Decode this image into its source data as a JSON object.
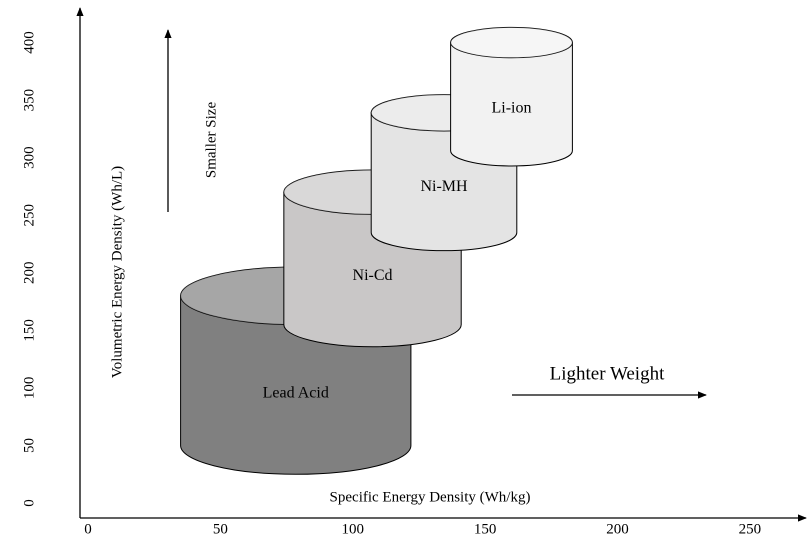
{
  "chart_data": {
    "type": "range-cylinder",
    "xlabel": "Specific Energy Density (Wh/kg)",
    "ylabel": "Volumetric Energy Density (Wh/L)",
    "xlim": [
      0,
      275
    ],
    "ylim": [
      -13,
      430
    ],
    "xticks": [
      0,
      50,
      100,
      150,
      200,
      250
    ],
    "yticks": [
      0,
      50,
      100,
      150,
      200,
      250,
      300,
      350,
      400
    ],
    "annotations": [
      "Smaller Size",
      "Lighter Weight"
    ],
    "series": [
      {
        "name": "Lead Acid",
        "color": "#808080",
        "x": [
          38,
          125
        ],
        "y": [
          50,
          180
        ]
      },
      {
        "name": "Ni-Cd",
        "color": "#c9c7c7",
        "x": [
          77,
          144
        ],
        "y": [
          155,
          270
        ]
      },
      {
        "name": "Ni-MH",
        "color": "#e4e4e4",
        "x": [
          110,
          165
        ],
        "y": [
          235,
          339
        ]
      },
      {
        "name": "Li-ion",
        "color": "#f2f2f2",
        "x": [
          140,
          186
        ],
        "y": [
          306,
          400
        ]
      }
    ]
  }
}
